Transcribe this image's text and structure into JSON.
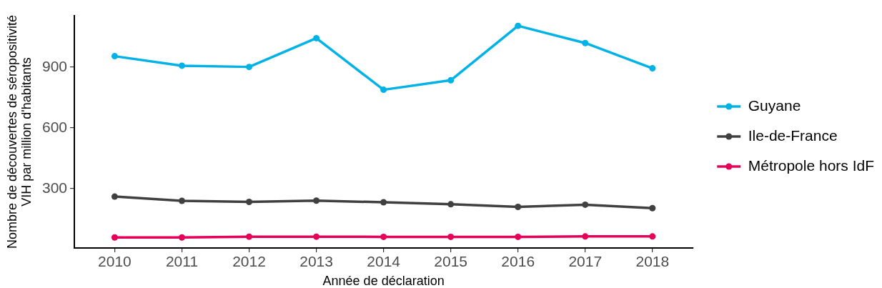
{
  "chart_data": {
    "type": "line",
    "xlabel": "Année de déclaration",
    "ylabel": "Nombre de découvertes de séropositivité\nVIH par million d'habitants",
    "x": [
      2010,
      2011,
      2012,
      2013,
      2014,
      2015,
      2016,
      2017,
      2018
    ],
    "xlim": [
      2009.4,
      2018.6
    ],
    "xticks": [
      2010,
      2011,
      2012,
      2013,
      2014,
      2015,
      2016,
      2017,
      2018
    ],
    "ylim": [
      6,
      1154
    ],
    "yticks": [
      300,
      600,
      900
    ],
    "series": [
      {
        "name": "Guyane",
        "color": "#00b2e5",
        "values": [
          954,
          907,
          901,
          1043,
          788,
          835,
          1104,
          1019,
          894
        ]
      },
      {
        "name": "Ile-de-France",
        "color": "#404040",
        "values": [
          260,
          239,
          234,
          240,
          232,
          222,
          209,
          220,
          203
        ]
      },
      {
        "name": "Métropole hors IdF",
        "color": "#e5005a",
        "values": [
          58,
          58,
          62,
          62,
          61,
          61,
          61,
          63,
          63
        ]
      }
    ],
    "legend": "right",
    "marker": "circle",
    "line_style": "solid"
  }
}
